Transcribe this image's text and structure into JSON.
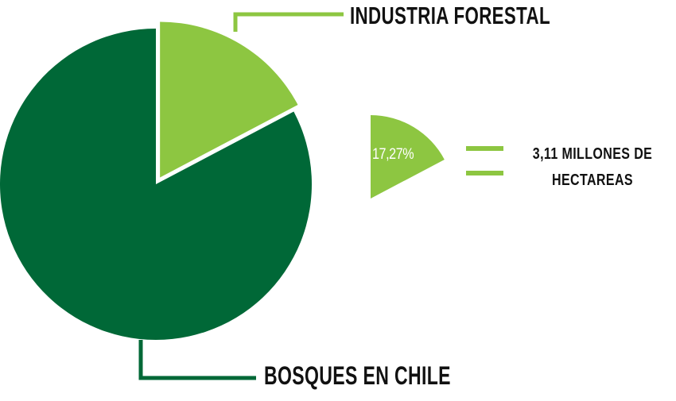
{
  "chart_data": {
    "type": "pie",
    "series": [
      {
        "slices": [
          {
            "label": "INDUSTRIA FORESTAL",
            "value": 17.27,
            "exploded": true
          },
          {
            "label": "BOSQUES EN CHILE",
            "value": 82.73,
            "exploded": false
          }
        ]
      }
    ],
    "callout": {
      "percent_text": "17,27%",
      "value_text": "3,11 MILLONES DE HECTAREAS"
    }
  },
  "colors": {
    "industria_forestal": "#8dc641",
    "bosques_en_chile": "#006837",
    "label_text": "#111111"
  }
}
